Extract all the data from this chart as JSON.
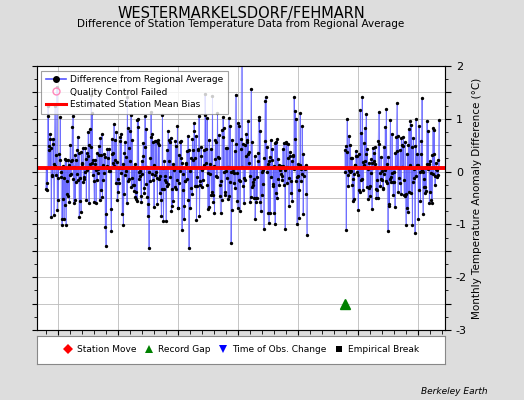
{
  "title": "WESTERMARKELSDORF/FEHMARN",
  "subtitle": "Difference of Station Temperature Data from Regional Average",
  "ylabel": "Monthly Temperature Anomaly Difference (°C)",
  "xlim": [
    1946.5,
    2014.5
  ],
  "ylim": [
    -3,
    2
  ],
  "yticks": [
    -3,
    -2.5,
    -2,
    -1.5,
    -1,
    -0.5,
    0,
    0.5,
    1,
    1.5,
    2
  ],
  "ytick_labels": [
    "-3",
    "",
    "-2",
    "",
    "-1",
    "",
    "0",
    "",
    "1",
    "",
    "2"
  ],
  "xticks": [
    1950,
    1960,
    1970,
    1980,
    1990,
    2000,
    2010
  ],
  "mean_bias": 0.07,
  "period1_start": 1948.0,
  "period1_end": 1991.5,
  "period2_start": 1997.75,
  "period2_end": 2013.5,
  "record_gap_x": 1997.75,
  "record_gap_y": -2.5,
  "bg_color": "#dddddd",
  "plot_bg_color": "#ffffff",
  "line_color": "#5555ff",
  "bias_color": "#ff0000",
  "seed": 12345
}
